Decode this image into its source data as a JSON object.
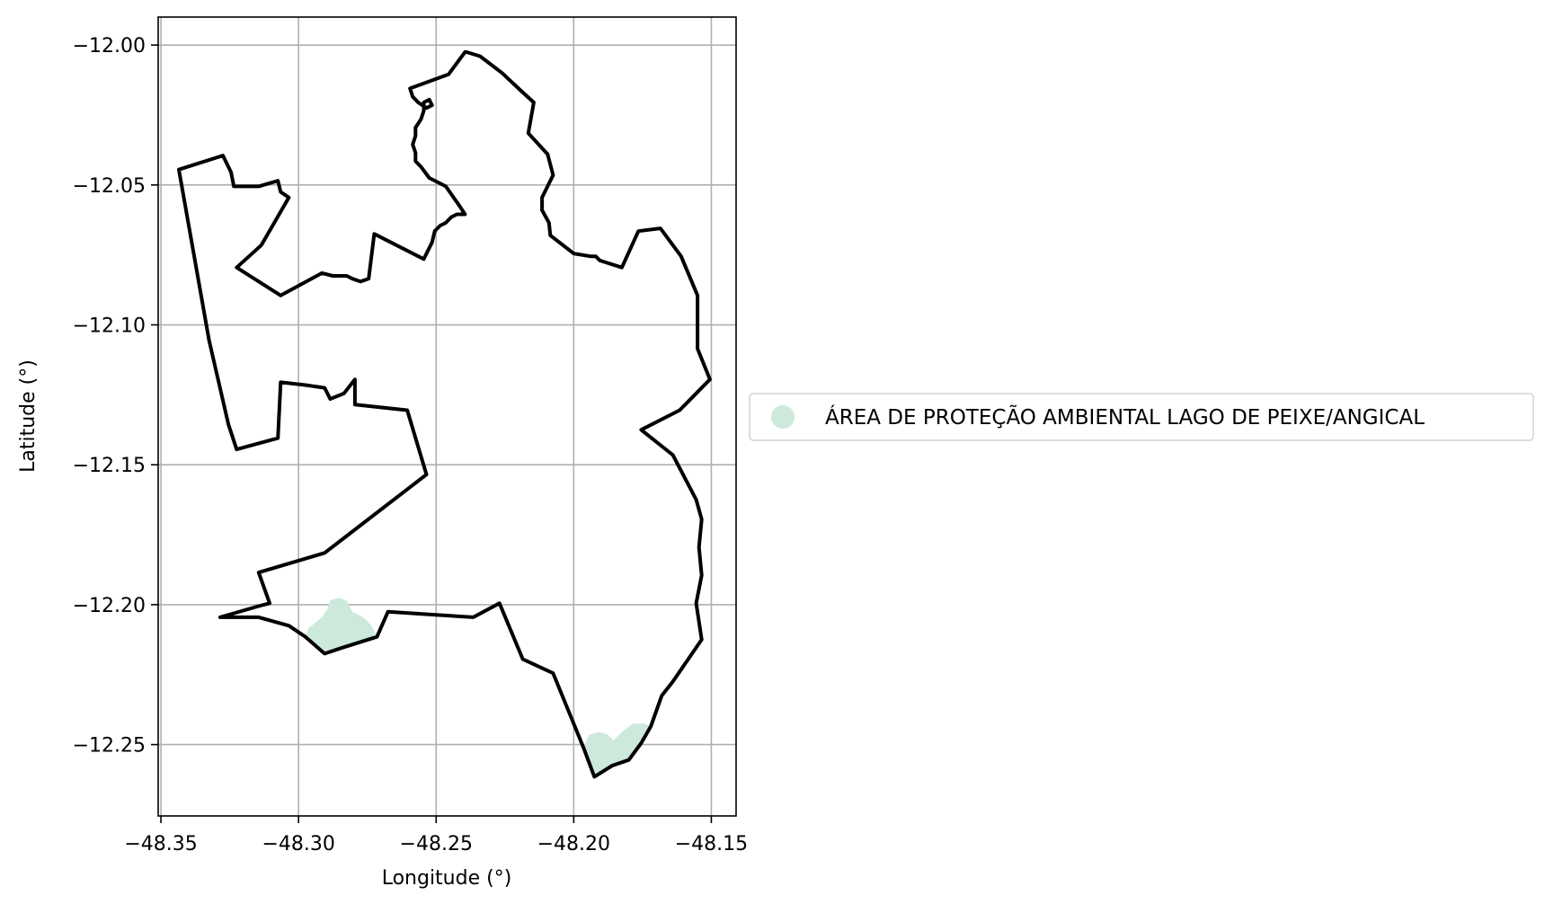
{
  "map": {
    "xlabel": "Longitude (°)",
    "ylabel": "Latitude (°)",
    "xlim": [
      -48.351,
      -48.141
    ],
    "ylim": [
      -12.2755,
      -11.99
    ],
    "grid": true,
    "x_ticks": [
      -48.35,
      -48.3,
      -48.25,
      -48.2,
      -48.15
    ],
    "x_tick_labels": [
      "−48.35",
      "−48.30",
      "−48.25",
      "−48.20",
      "−48.15"
    ],
    "y_ticks": [
      -12.0,
      -12.05,
      -12.1,
      -12.15,
      -12.2,
      -12.25
    ],
    "y_tick_labels": [
      "−12.00",
      "−12.05",
      "−12.10",
      "−12.15",
      "−12.20",
      "−12.25"
    ],
    "legend": {
      "placement": "center-left, outside the axes",
      "entry_label": "ÁREA DE PROTEÇÃO AMBIENTAL LAGO DE PEIXE/ANGICAL",
      "entry_color": "#cde9dc"
    },
    "boundary_color": "#000000",
    "boundary": [
      [
        -48.239,
        -12.0025
      ],
      [
        -48.234,
        -12.004
      ],
      [
        -48.226,
        -12.01
      ],
      [
        -48.219,
        -12.0165
      ],
      [
        -48.2145,
        -12.0205
      ],
      [
        -48.2165,
        -12.0315
      ],
      [
        -48.2095,
        -12.039
      ],
      [
        -48.2075,
        -12.0465
      ],
      [
        -48.2115,
        -12.0545
      ],
      [
        -48.2115,
        -12.059
      ],
      [
        -48.209,
        -12.0635
      ],
      [
        -48.2085,
        -12.068
      ],
      [
        -48.2,
        -12.0745
      ],
      [
        -48.194,
        -12.0755
      ],
      [
        -48.192,
        -12.0755
      ],
      [
        -48.1905,
        -12.077
      ],
      [
        -48.1825,
        -12.0795
      ],
      [
        -48.1765,
        -12.0665
      ],
      [
        -48.1685,
        -12.0655
      ],
      [
        -48.161,
        -12.0755
      ],
      [
        -48.155,
        -12.0895
      ],
      [
        -48.155,
        -12.1085
      ],
      [
        -48.1505,
        -12.1195
      ],
      [
        -48.1615,
        -12.1305
      ],
      [
        -48.1755,
        -12.1375
      ],
      [
        -48.164,
        -12.1465
      ],
      [
        -48.1555,
        -12.1625
      ],
      [
        -48.1535,
        -12.1695
      ],
      [
        -48.1545,
        -12.1795
      ],
      [
        -48.1535,
        -12.1895
      ],
      [
        -48.1555,
        -12.1995
      ],
      [
        -48.1535,
        -12.2125
      ],
      [
        -48.164,
        -12.2275
      ],
      [
        -48.168,
        -12.2325
      ],
      [
        -48.172,
        -12.2435
      ],
      [
        -48.1755,
        -12.2495
      ],
      [
        -48.18,
        -12.2555
      ],
      [
        -48.186,
        -12.2575
      ],
      [
        -48.1925,
        -12.2615
      ],
      [
        -48.1965,
        -12.251
      ],
      [
        -48.2075,
        -12.2245
      ],
      [
        -48.2185,
        -12.2195
      ],
      [
        -48.227,
        -12.1995
      ],
      [
        -48.2365,
        -12.2045
      ],
      [
        -48.2525,
        -12.2035
      ],
      [
        -48.2675,
        -12.2025
      ],
      [
        -48.2715,
        -12.2115
      ],
      [
        -48.2845,
        -12.2155
      ],
      [
        -48.2905,
        -12.2175
      ],
      [
        -48.2975,
        -12.2115
      ],
      [
        -48.3035,
        -12.2075
      ],
      [
        -48.3145,
        -12.2045
      ],
      [
        -48.3285,
        -12.2045
      ],
      [
        -48.3145,
        -12.2005
      ],
      [
        -48.3105,
        -12.1995
      ],
      [
        -48.3145,
        -12.1885
      ],
      [
        -48.2905,
        -12.1815
      ],
      [
        -48.2535,
        -12.1535
      ],
      [
        -48.2605,
        -12.1305
      ],
      [
        -48.2795,
        -12.1285
      ],
      [
        -48.2795,
        -12.1195
      ],
      [
        -48.2835,
        -12.1245
      ],
      [
        -48.2885,
        -12.1265
      ],
      [
        -48.2905,
        -12.1225
      ],
      [
        -48.2975,
        -12.1215
      ],
      [
        -48.3065,
        -12.1205
      ],
      [
        -48.3075,
        -12.1405
      ],
      [
        -48.3225,
        -12.1445
      ],
      [
        -48.3255,
        -12.1355
      ],
      [
        -48.3325,
        -12.1055
      ],
      [
        -48.3435,
        -12.0445
      ],
      [
        -48.3275,
        -12.0395
      ],
      [
        -48.3245,
        -12.0455
      ],
      [
        -48.3235,
        -12.0505
      ],
      [
        -48.3145,
        -12.0505
      ],
      [
        -48.3075,
        -12.0485
      ],
      [
        -48.3065,
        -12.0525
      ],
      [
        -48.3035,
        -12.0545
      ],
      [
        -48.3135,
        -12.0715
      ],
      [
        -48.3225,
        -12.0795
      ],
      [
        -48.3065,
        -12.0895
      ],
      [
        -48.2915,
        -12.0815
      ],
      [
        -48.2875,
        -12.0825
      ],
      [
        -48.2855,
        -12.0825
      ],
      [
        -48.2825,
        -12.0825
      ],
      [
        -48.2805,
        -12.0835
      ],
      [
        -48.2775,
        -12.0845
      ],
      [
        -48.2745,
        -12.0835
      ],
      [
        -48.2725,
        -12.0675
      ],
      [
        -48.2545,
        -12.0765
      ],
      [
        -48.2515,
        -12.0705
      ],
      [
        -48.2505,
        -12.0665
      ],
      [
        -48.2485,
        -12.0645
      ],
      [
        -48.2465,
        -12.0635
      ],
      [
        -48.2445,
        -12.0615
      ],
      [
        -48.2425,
        -12.0605
      ],
      [
        -48.2395,
        -12.0605
      ],
      [
        -48.2415,
        -12.0575
      ],
      [
        -48.2465,
        -12.0505
      ],
      [
        -48.2525,
        -12.0475
      ],
      [
        -48.2555,
        -12.0435
      ],
      [
        -48.2575,
        -12.0415
      ],
      [
        -48.2575,
        -12.0385
      ],
      [
        -48.2585,
        -12.0355
      ],
      [
        -48.2575,
        -12.0325
      ],
      [
        -48.2575,
        -12.0295
      ],
      [
        -48.2555,
        -12.0265
      ],
      [
        -48.2545,
        -12.0235
      ],
      [
        -48.2545,
        -12.0205
      ],
      [
        -48.2525,
        -12.0195
      ],
      [
        -48.2515,
        -12.0215
      ],
      [
        -48.2535,
        -12.0225
      ],
      [
        -48.2565,
        -12.0205
      ],
      [
        -48.2585,
        -12.0185
      ],
      [
        -48.2595,
        -12.0155
      ],
      [
        -48.2455,
        -12.0105
      ],
      [
        -48.2395,
        -12.0025
      ]
    ],
    "protected_area_patches": [
      [
        [
          -48.2965,
          -12.2085
        ],
        [
          -48.2915,
          -12.2045
        ],
        [
          -48.2895,
          -12.2015
        ],
        [
          -48.2885,
          -12.1985
        ],
        [
          -48.2855,
          -12.1975
        ],
        [
          -48.2825,
          -12.1985
        ],
        [
          -48.2805,
          -12.2025
        ],
        [
          -48.2765,
          -12.2045
        ],
        [
          -48.2735,
          -12.2075
        ],
        [
          -48.2715,
          -12.2115
        ],
        [
          -48.2845,
          -12.2155
        ],
        [
          -48.2905,
          -12.2175
        ],
        [
          -48.2975,
          -12.2115
        ]
      ],
      [
        [
          -48.1965,
          -12.251
        ],
        [
          -48.1945,
          -12.2465
        ],
        [
          -48.1905,
          -12.2455
        ],
        [
          -48.1875,
          -12.2465
        ],
        [
          -48.1855,
          -12.2485
        ],
        [
          -48.1825,
          -12.2455
        ],
        [
          -48.1785,
          -12.2425
        ],
        [
          -48.1745,
          -12.2425
        ],
        [
          -48.172,
          -12.2435
        ],
        [
          -48.1755,
          -12.2495
        ],
        [
          -48.18,
          -12.2555
        ],
        [
          -48.186,
          -12.2575
        ],
        [
          -48.1925,
          -12.2615
        ]
      ]
    ]
  }
}
